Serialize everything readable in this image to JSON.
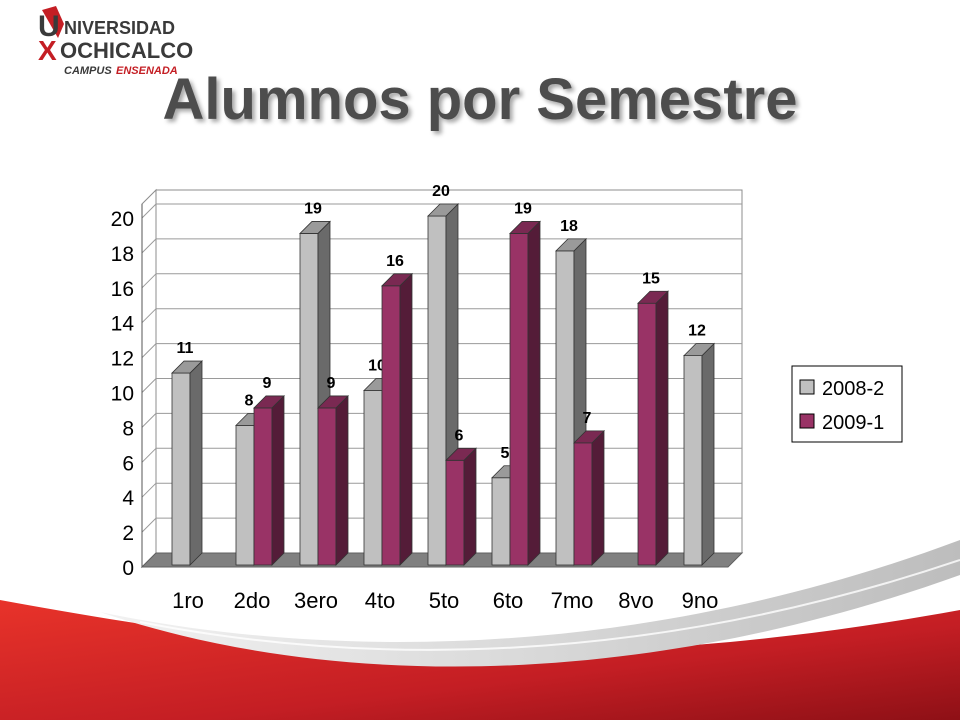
{
  "logo": {
    "line1": "NIVERSIDAD",
    "line2": "OCHICALCO",
    "initial_u": "U",
    "initial_x": "X",
    "campus": "CAMPUS",
    "campus_name": "ENSENADA",
    "brand_color": "#c41e24",
    "dark_color": "#3a3a3a"
  },
  "title": "Alumnos por Semestre",
  "chart_data": {
    "type": "bar",
    "style": "3d-clustered-column",
    "categories": [
      "1ro",
      "2do",
      "3ero",
      "4to",
      "5to",
      "6to",
      "7mo",
      "8vo",
      "9no"
    ],
    "series": [
      {
        "name": "2008-2",
        "color": "#c0c0c0",
        "values": [
          11,
          8,
          19,
          10,
          20,
          5,
          18,
          null,
          12
        ]
      },
      {
        "name": "2009-1",
        "color": "#993366",
        "values": [
          null,
          9,
          9,
          16,
          6,
          19,
          7,
          15,
          null
        ]
      }
    ],
    "ylim": [
      0,
      20
    ],
    "yticks": [
      0,
      2,
      4,
      6,
      8,
      10,
      12,
      14,
      16,
      18,
      20
    ],
    "grid": true,
    "legend": "right",
    "data_labels": true
  }
}
